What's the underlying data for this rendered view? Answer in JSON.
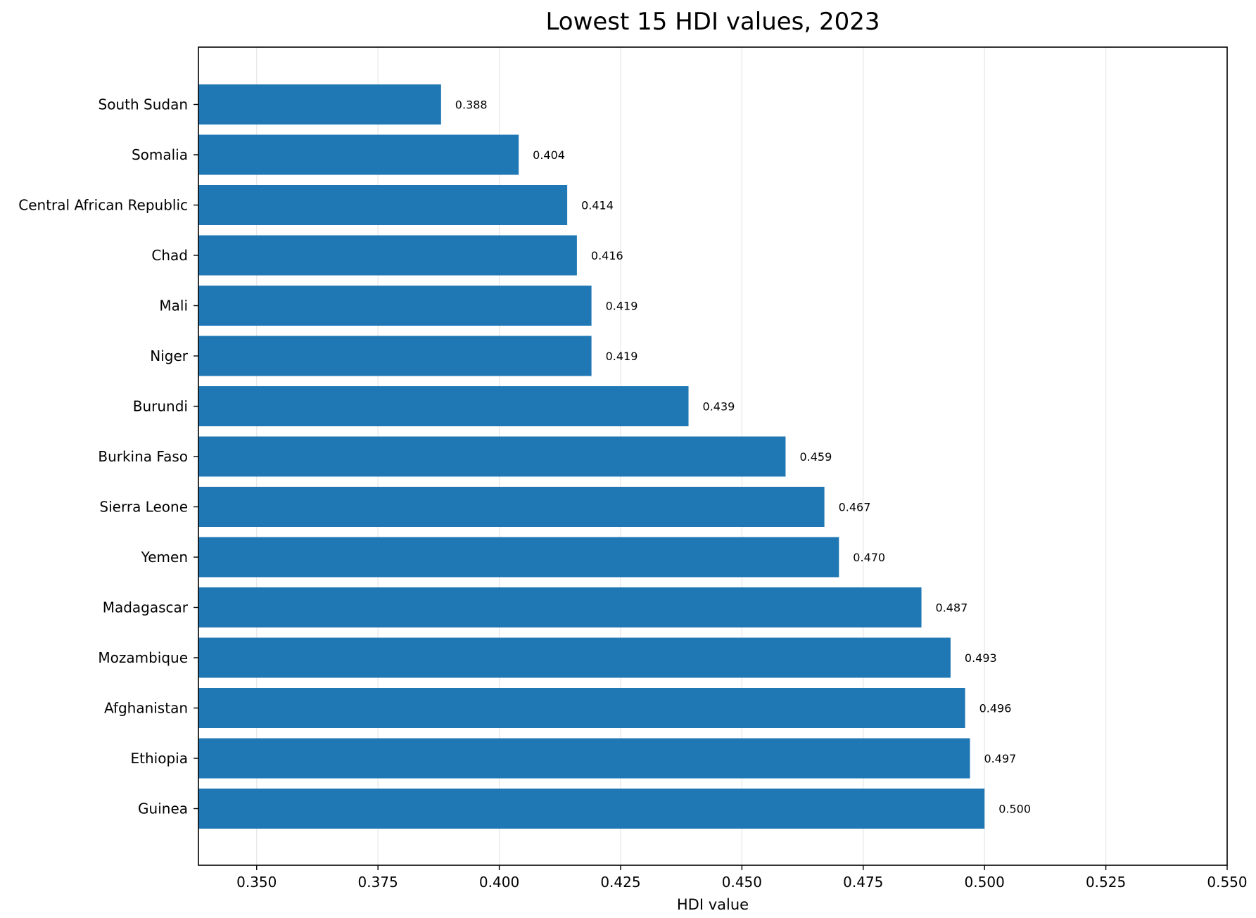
{
  "chart_data": {
    "type": "bar",
    "orientation": "horizontal",
    "title": "Lowest 15 HDI values, 2023",
    "xlabel": "HDI value",
    "ylabel": "",
    "xlim": [
      0.338,
      0.55
    ],
    "xticks": [
      0.35,
      0.375,
      0.4,
      0.425,
      0.45,
      0.475,
      0.5,
      0.525,
      0.55
    ],
    "xtick_labels": [
      "0.350",
      "0.375",
      "0.400",
      "0.425",
      "0.450",
      "0.475",
      "0.500",
      "0.525",
      "0.550"
    ],
    "grid": "x",
    "bar_color": "#1f77b4",
    "categories": [
      "South Sudan",
      "Somalia",
      "Central African Republic",
      "Chad",
      "Mali",
      "Niger",
      "Burundi",
      "Burkina Faso",
      "Sierra Leone",
      "Yemen",
      "Madagascar",
      "Mozambique",
      "Afghanistan",
      "Ethiopia",
      "Guinea"
    ],
    "values": [
      0.388,
      0.404,
      0.414,
      0.416,
      0.419,
      0.419,
      0.439,
      0.459,
      0.467,
      0.47,
      0.487,
      0.493,
      0.496,
      0.497,
      0.5
    ],
    "value_labels": [
      "0.388",
      "0.404",
      "0.414",
      "0.416",
      "0.419",
      "0.419",
      "0.439",
      "0.459",
      "0.467",
      "0.470",
      "0.487",
      "0.493",
      "0.496",
      "0.497",
      "0.500"
    ]
  }
}
